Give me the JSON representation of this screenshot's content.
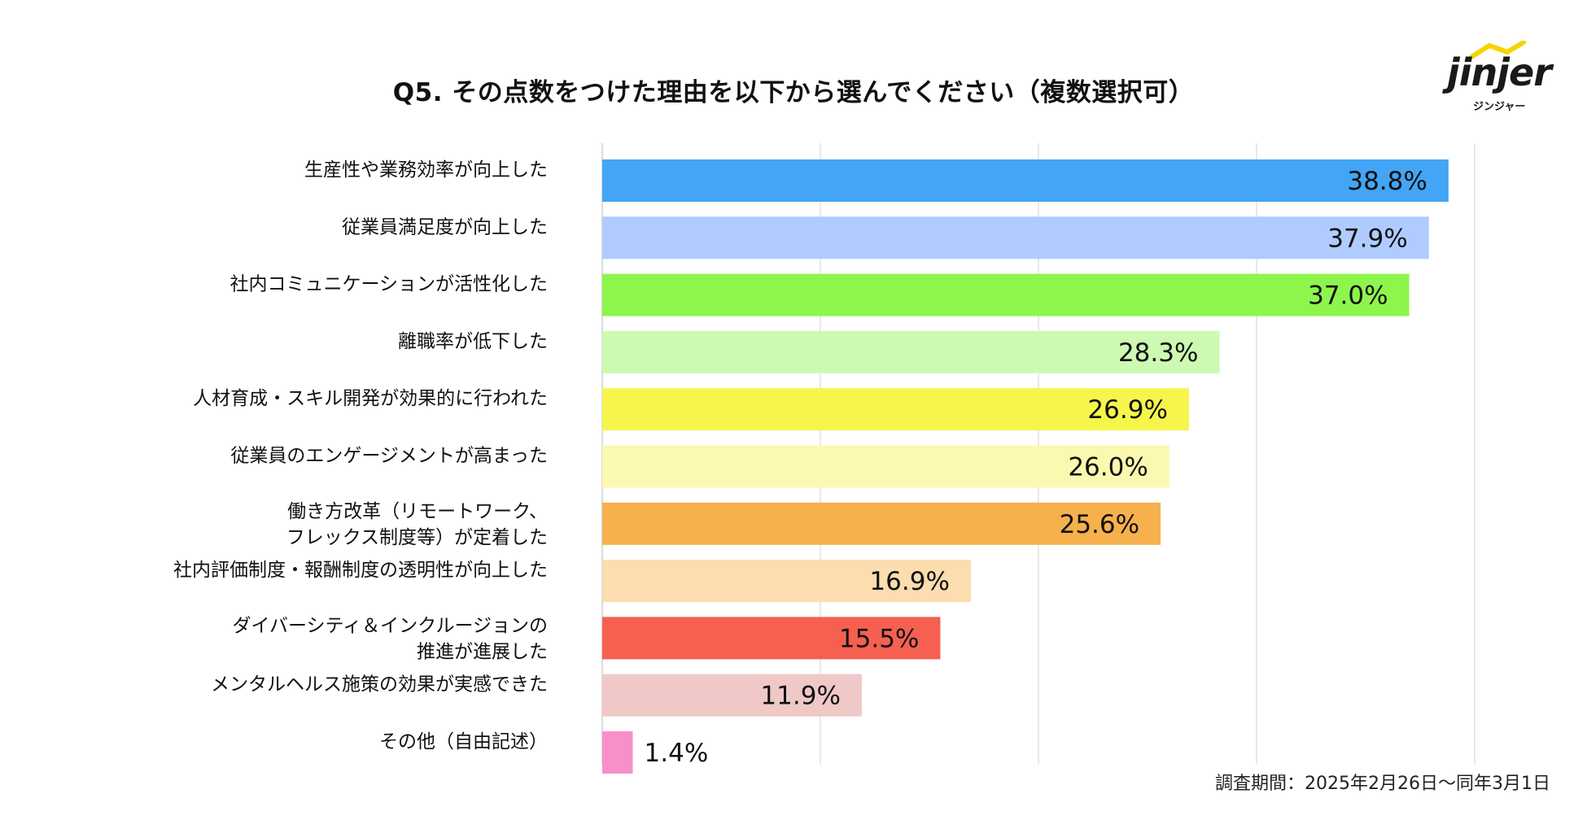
{
  "title": "Q5. その点数をつけた理由を以下から選んでください（複数選択可）",
  "logo": {
    "word": "jinjer",
    "sub": "ジンジャー"
  },
  "footer": "調査期間：2025年2月26日〜同年3月1日",
  "chart_data": {
    "type": "bar",
    "orientation": "horizontal",
    "title": "Q5. その点数をつけた理由を以下から選んでください（複数選択可）",
    "xlim": [
      0,
      40
    ],
    "grid": true,
    "categories": [
      [
        "生産性や業務効率が向上した"
      ],
      [
        "従業員満足度が向上した"
      ],
      [
        "社内コミュニケーションが活性化した"
      ],
      [
        "離職率が低下した"
      ],
      [
        "人材育成・スキル開発が効果的に行われた"
      ],
      [
        "従業員のエンゲージメントが高まった"
      ],
      [
        "働き方改革（リモートワーク、",
        "フレックス制度等）が定着した"
      ],
      [
        "社内評価制度・報酬制度の透明性が向上した"
      ],
      [
        "ダイバーシティ＆インクルージョンの",
        "推進が進展した"
      ],
      [
        "メンタルヘルス施策の効果が実感できた"
      ],
      [
        "その他（自由記述）"
      ]
    ],
    "values": [
      38.8,
      37.9,
      37.0,
      28.3,
      26.9,
      26.0,
      25.6,
      16.9,
      15.5,
      11.9,
      1.4
    ],
    "value_labels": [
      "38.8%",
      "37.9%",
      "37.0%",
      "28.3%",
      "26.9%",
      "26.0%",
      "25.6%",
      "16.9%",
      "15.5%",
      "11.9%",
      "1.4%"
    ],
    "colors": [
      "#42a5f5",
      "#b0cbff",
      "#8ef54c",
      "#cdf9b2",
      "#f5f54c",
      "#fbf9b0",
      "#f6b04c",
      "#fcddb0",
      "#f56050",
      "#f0c8c8",
      "#f790c8"
    ]
  }
}
